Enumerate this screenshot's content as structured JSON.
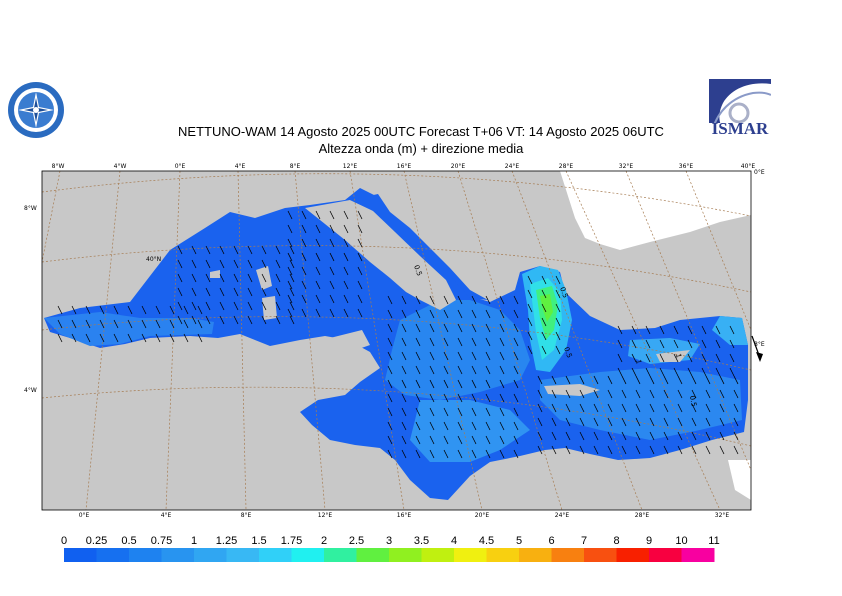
{
  "header": {
    "title_line1": "NETTUNO-WAM  14   Agosto  2025 00UTC Forecast T+06 VT: 14   Agosto  2025 06UTC",
    "title_line2": "Altezza onda (m) + direzione media"
  },
  "logos": {
    "left_emblem": "emblem-icon",
    "right_logo_text": "ISMAR"
  },
  "map": {
    "top_lon_labels": [
      "8°W",
      "4°W",
      "0°E",
      "4°E",
      "8°E",
      "12°E",
      "16°E",
      "20°E",
      "24°E",
      "28°E",
      "32°E",
      "36°E",
      "40°E"
    ],
    "bottom_lon_labels": [
      "0°E",
      "4°E",
      "8°E",
      "12°E",
      "16°E",
      "20°E",
      "24°E",
      "28°E",
      "32°E"
    ],
    "left_lat_labels": [
      "8°W",
      "4°W"
    ],
    "right_lat_labels": [
      "0°E",
      "8°E"
    ],
    "lat_label": "40°N",
    "contour_labels": [
      "0.5",
      "0.5",
      "0.5",
      "1",
      "1",
      "0.5",
      "0.5"
    ]
  },
  "legend": {
    "values": [
      "0",
      "0.25",
      "0.5",
      "0.75",
      "1",
      "1.25",
      "1.5",
      "1.75",
      "2",
      "2.5",
      "3",
      "3.5",
      "4",
      "4.5",
      "5",
      "6",
      "7",
      "8",
      "9",
      "10",
      "11"
    ],
    "colors": [
      "#1060f0",
      "#1670f0",
      "#1e82f0",
      "#2894f0",
      "#30a6f2",
      "#38b8f4",
      "#30d0f8",
      "#20f0f0",
      "#30f0a0",
      "#60f040",
      "#90f020",
      "#c0f010",
      "#f0f010",
      "#f8d010",
      "#f8b010",
      "#f88010",
      "#f85010",
      "#f82000",
      "#f80040",
      "#f800a0",
      "#f820d0"
    ]
  }
}
